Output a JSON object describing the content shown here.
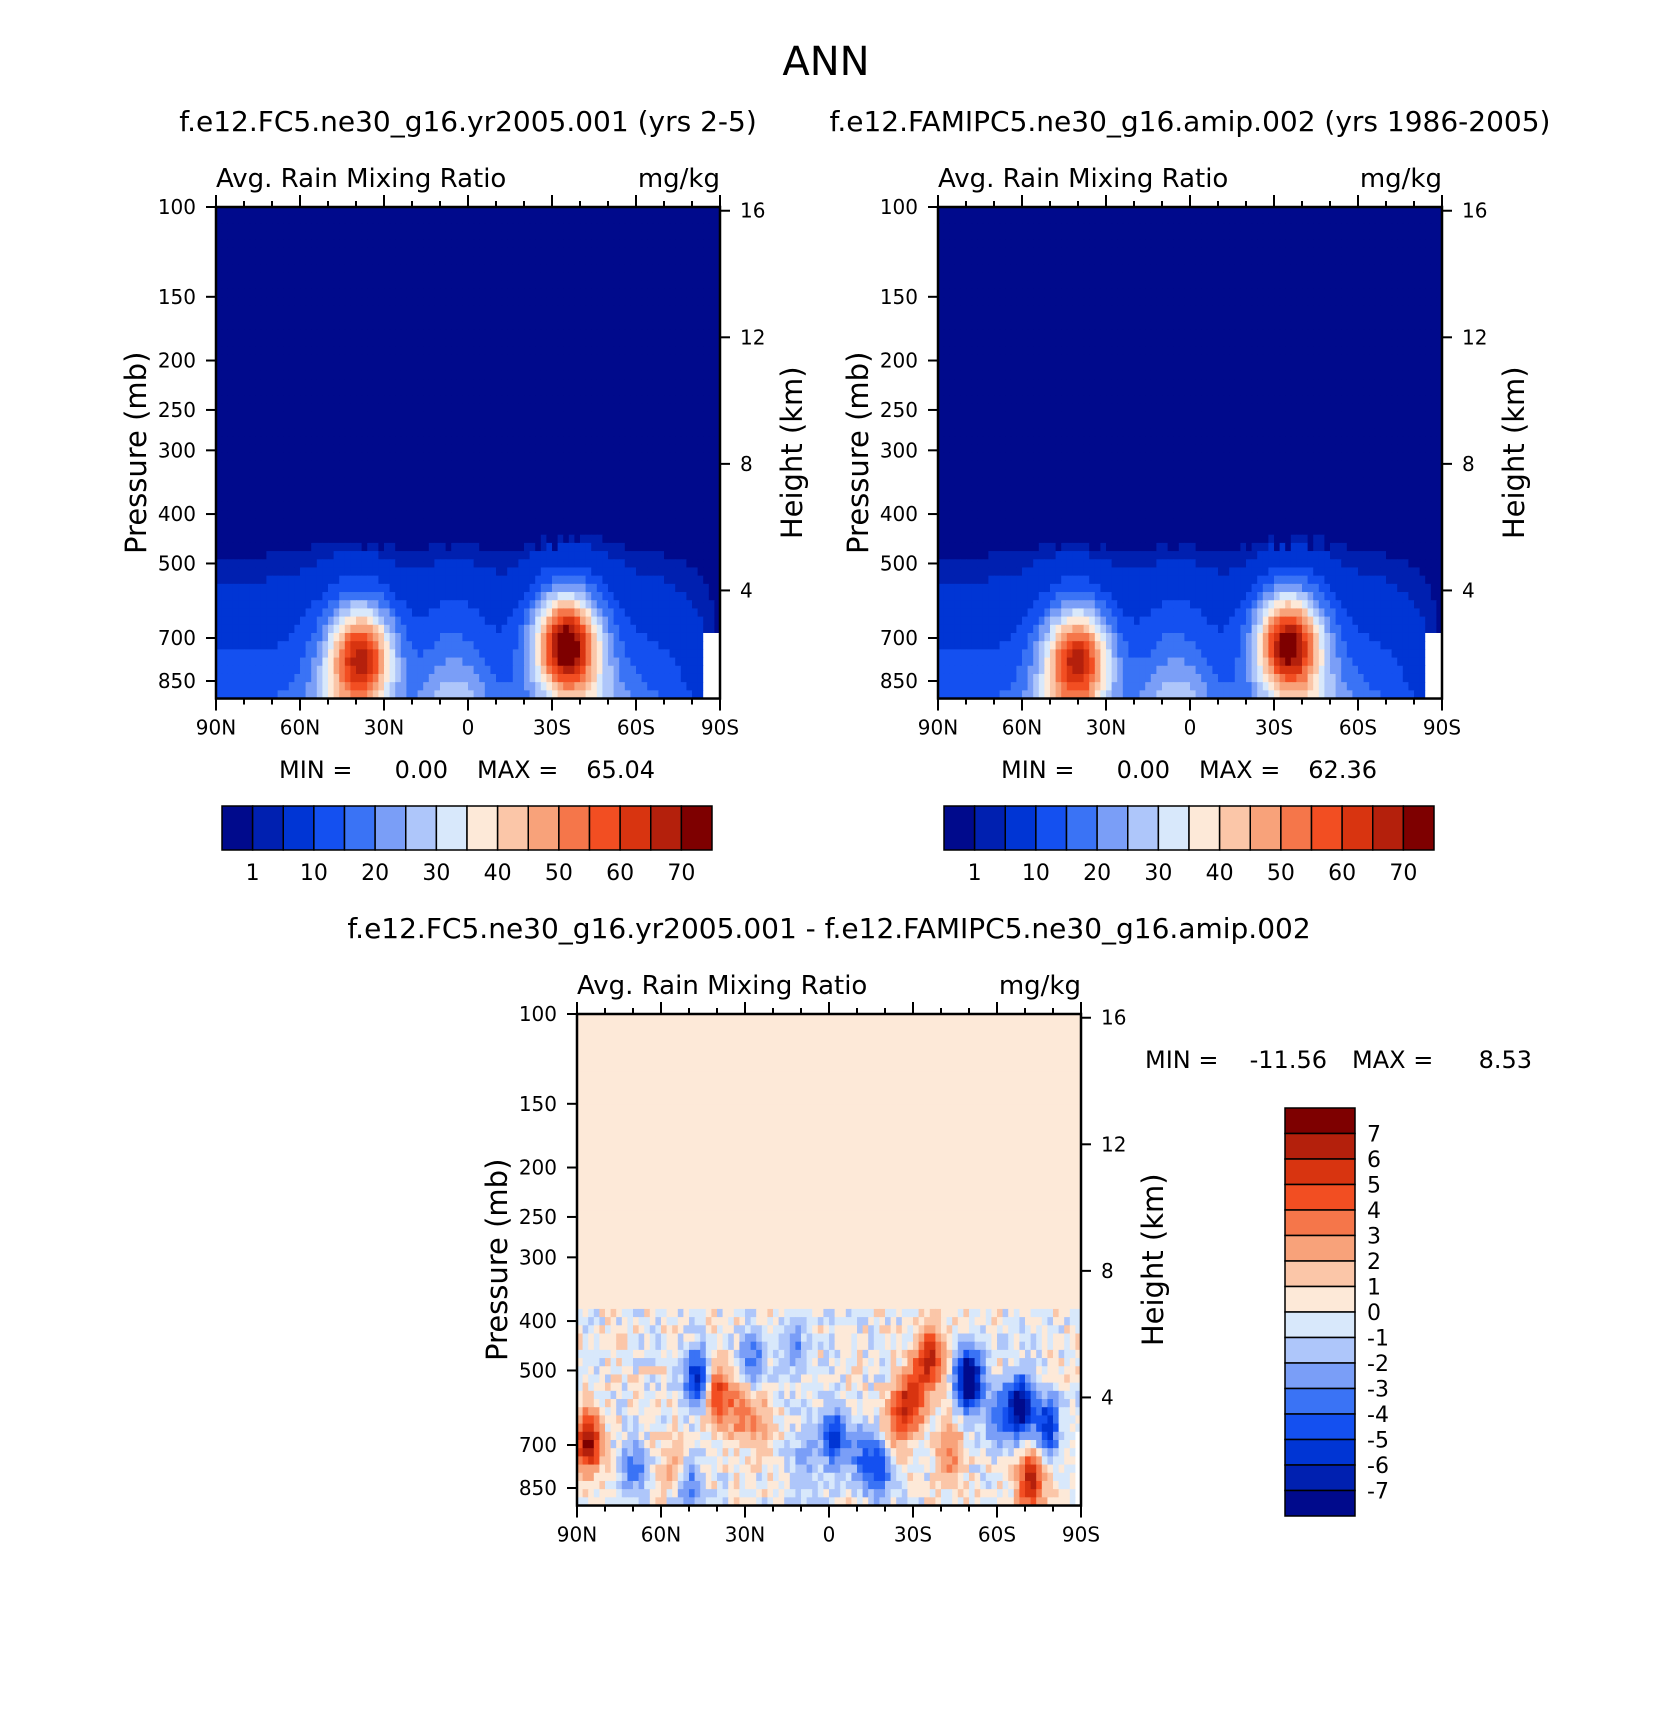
{
  "figure_title": "ANN",
  "chart_data": [
    {
      "type": "heatmap",
      "id": "panel1",
      "title": "f.e12.FC5.ne30_g16.yr2005.001 (yrs 2-5)",
      "subtitle_left": "Avg. Rain Mixing Ratio",
      "subtitle_right": "mg/kg",
      "xlabel": "",
      "ylabel": "Pressure (mb)",
      "ylabel_right": "Height (km)",
      "x_ticks": [
        "90N",
        "60N",
        "30N",
        "0",
        "30S",
        "60S",
        "90S"
      ],
      "y_ticks": [
        "100",
        "150",
        "200",
        "250",
        "300",
        "400",
        "500",
        "700",
        "850"
      ],
      "y_ticks_right": [
        "16",
        "12",
        "8",
        "4"
      ],
      "min_label": "MIN =",
      "min_value": "0.00",
      "max_label": "MAX =",
      "max_value": "65.04",
      "colorbar_labels": [
        "1",
        "10",
        "20",
        "30",
        "40",
        "50",
        "60",
        "70"
      ],
      "features": [
        {
          "lat": -35,
          "p": 720,
          "peak": 65
        },
        {
          "lat": 38,
          "p": 760,
          "peak": 52
        }
      ]
    },
    {
      "type": "heatmap",
      "id": "panel2",
      "title": "f.e12.FAMIPC5.ne30_g16.amip.002 (yrs 1986-2005)",
      "subtitle_left": "Avg. Rain Mixing Ratio",
      "subtitle_right": "mg/kg",
      "xlabel": "",
      "ylabel": "Pressure (mb)",
      "ylabel_right": "Height (km)",
      "x_ticks": [
        "90N",
        "60N",
        "30N",
        "0",
        "30S",
        "60S",
        "90S"
      ],
      "y_ticks": [
        "100",
        "150",
        "200",
        "250",
        "300",
        "400",
        "500",
        "700",
        "850"
      ],
      "y_ticks_right": [
        "16",
        "12",
        "8",
        "4"
      ],
      "min_label": "MIN =",
      "min_value": "0.00",
      "max_label": "MAX =",
      "max_value": "62.36",
      "colorbar_labels": [
        "1",
        "10",
        "20",
        "30",
        "40",
        "50",
        "60",
        "70"
      ],
      "features": [
        {
          "lat": -35,
          "p": 720,
          "peak": 62
        },
        {
          "lat": 40,
          "p": 770,
          "peak": 50
        }
      ]
    },
    {
      "type": "heatmap",
      "id": "panel3",
      "title": "f.e12.FC5.ne30_g16.yr2005.001 - f.e12.FAMIPC5.ne30_g16.amip.002",
      "subtitle_left": "Avg. Rain Mixing Ratio",
      "subtitle_right": "mg/kg",
      "xlabel": "",
      "ylabel": "Pressure (mb)",
      "ylabel_right": "Height (km)",
      "x_ticks": [
        "90N",
        "60N",
        "30N",
        "0",
        "30S",
        "60S",
        "90S"
      ],
      "y_ticks": [
        "100",
        "150",
        "200",
        "250",
        "300",
        "400",
        "500",
        "700",
        "850"
      ],
      "y_ticks_right": [
        "16",
        "12",
        "8",
        "4"
      ],
      "min_label": "MIN =",
      "min_value": "-11.56",
      "max_label": "MAX =",
      "max_value": "8.53",
      "colorbar_labels": [
        "7",
        "6",
        "5",
        "4",
        "3",
        "2",
        "1",
        "0",
        "-1",
        "-2",
        "-3",
        "-4",
        "-5",
        "-6",
        "-7"
      ]
    }
  ],
  "colors": {
    "seq": [
      "#000a8c",
      "#0020b0",
      "#0035d4",
      "#1450f0",
      "#3a73f5",
      "#7a9ef7",
      "#aec6fa",
      "#d8e8fb",
      "#fde9d8",
      "#fbc6a8",
      "#f8a27a",
      "#f5764a",
      "#f24e22",
      "#d83410",
      "#b4200c",
      "#7e0000"
    ],
    "div": [
      "#000a8c",
      "#0020b0",
      "#0035d4",
      "#1450f0",
      "#3a73f5",
      "#7a9ef7",
      "#aec6fa",
      "#d8e8fb",
      "#fde9d8",
      "#fbc6a8",
      "#f8a27a",
      "#f5764a",
      "#f24e22",
      "#d83410",
      "#b4200c",
      "#7e0000"
    ]
  }
}
